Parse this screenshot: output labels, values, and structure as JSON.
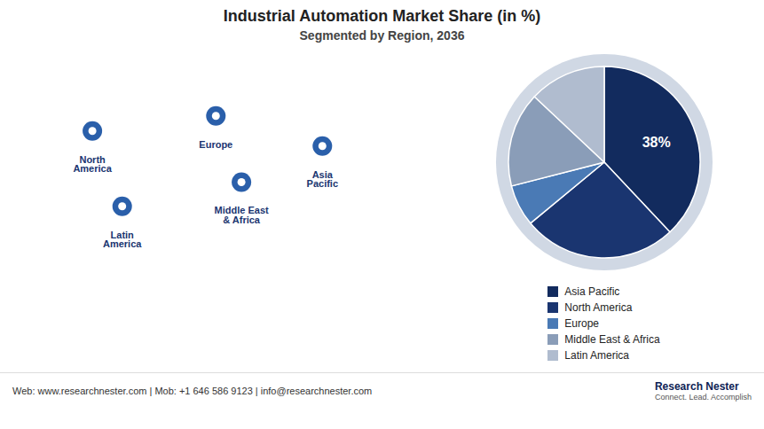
{
  "chart_data": {
    "type": "pie",
    "title": "Industrial Automation Market Share (in %)",
    "subtitle": "Segmented by Region, 2036",
    "categories": [
      "Asia Pacific",
      "North America",
      "Europe",
      "Middle East & Africa",
      "Latin America"
    ],
    "values": [
      38,
      26,
      7,
      16,
      13
    ],
    "colors": [
      "#122b5e",
      "#1a3570",
      "#4a7ab5",
      "#8a9db8",
      "#b0bccf"
    ],
    "data_labels": true,
    "value_labels": [
      "38%",
      null,
      null,
      null,
      null
    ],
    "legend": "bottom",
    "annotations": [
      "North\nAmerica",
      "Latin\nAmerica",
      "Europe",
      "Middle East\n& Africa",
      "Asia\nPacific",
      "Web: www.researchnester.com  |  Mob: +1 646 586 9123  |  info@researchnester.com",
      "Research Nester",
      "Connect. Lead. Accomplish"
    ]
  }
}
